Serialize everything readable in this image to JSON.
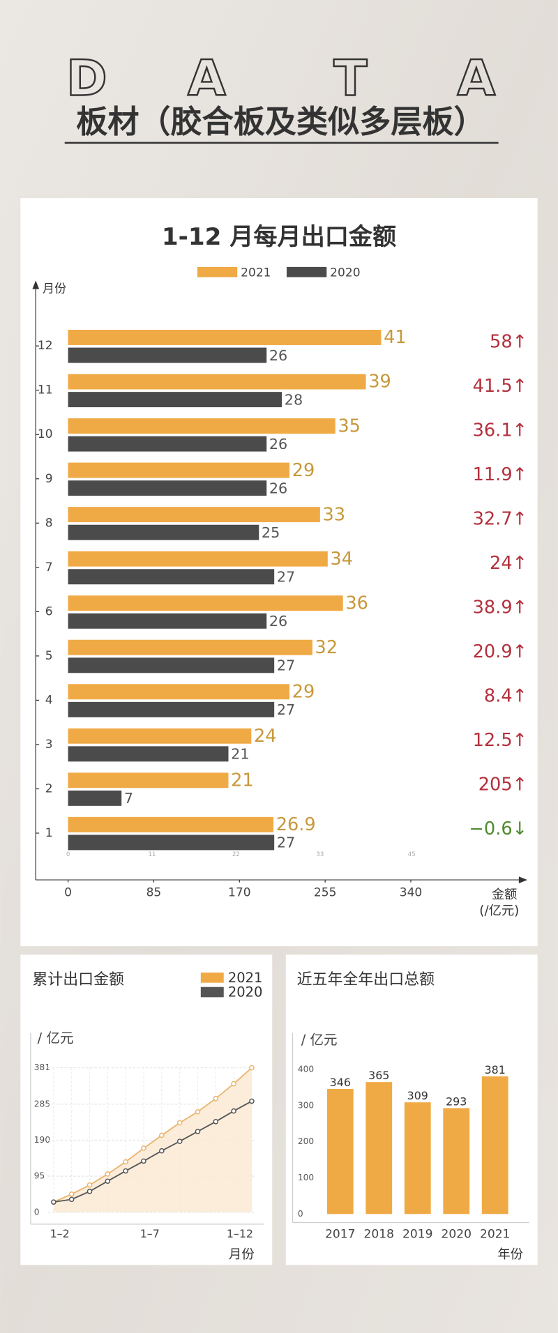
{
  "header": {
    "letters": [
      "D",
      "A",
      "T",
      "A"
    ],
    "title": "板材（胶合板及类似多层板）"
  },
  "chart_data": [
    {
      "type": "hbar",
      "title": "1-12 月每月出口金额",
      "y_label": "月份",
      "x_label": [
        "金额",
        "(/亿元)"
      ],
      "categories": [
        "1",
        "2",
        "3",
        "4",
        "5",
        "6",
        "7",
        "8",
        "9",
        "10",
        "11",
        "12"
      ],
      "series": [
        {
          "name": "2021",
          "color": "#f0aa45",
          "label_color": "#c8983c",
          "values": [
            26.9,
            21,
            24,
            29,
            32,
            36,
            34,
            33,
            29,
            35,
            39,
            41
          ]
        },
        {
          "name": "2020",
          "color": "#4b4b4b",
          "label_color": "#555555",
          "values": [
            27,
            7,
            21,
            27,
            27,
            26,
            27,
            25,
            26,
            26,
            28,
            26
          ]
        }
      ],
      "xlim": [
        0,
        45
      ],
      "xticks": [
        0,
        11,
        22,
        33,
        45
      ],
      "x2lim": [
        0,
        340
      ],
      "x2ticks": [
        0,
        85,
        170,
        255,
        340
      ],
      "growth": {
        "values": [
          -0.6,
          205,
          12.5,
          8.4,
          20.9,
          38.9,
          24,
          32.7,
          11.9,
          36.1,
          41.5,
          58
        ],
        "value_labels": [
          "−0.6↓",
          "205↑",
          "12.5↑",
          "8.4↑",
          "20.9↑",
          "38.9↑",
          "24↑",
          "32.7↑",
          "11.9↑",
          "36.1↑",
          "41.5↑",
          "58↑"
        ],
        "up_color": "#b3303c",
        "down_color": "#4e8a2c"
      }
    },
    {
      "type": "line",
      "title": "累计出口金额",
      "y_label": "/ 亿元",
      "x_label": "月份",
      "categories": [
        null,
        "1–2",
        null,
        null,
        null,
        null,
        "1–7",
        null,
        null,
        null,
        null,
        "1–12"
      ],
      "series": [
        {
          "name": "2021",
          "color": "#e9b46c",
          "area_color": "#fbe9d2",
          "values": [
            26.9,
            47.9,
            71.9,
            100.9,
            132.9,
            168.9,
            202.9,
            235.9,
            264.9,
            299.9,
            338.9,
            381
          ]
        },
        {
          "name": "2020",
          "color": "#555555",
          "values": [
            27,
            34,
            55,
            82,
            109,
            135,
            162,
            187,
            213,
            239,
            267,
            293
          ]
        }
      ],
      "ylim": [
        0,
        381
      ],
      "yticks": [
        0,
        95,
        190,
        285,
        381
      ],
      "grid": true
    },
    {
      "type": "bar",
      "title": "近五年全年出口总额",
      "y_label": "/ 亿元",
      "x_label": "年份",
      "categories": [
        "2017",
        "2018",
        "2019",
        "2020",
        "2021"
      ],
      "values": [
        346,
        365,
        309,
        293,
        381
      ],
      "color": "#f0aa45",
      "ylim": [
        0,
        400
      ],
      "yticks": [
        0,
        100,
        200,
        300,
        400
      ]
    }
  ]
}
